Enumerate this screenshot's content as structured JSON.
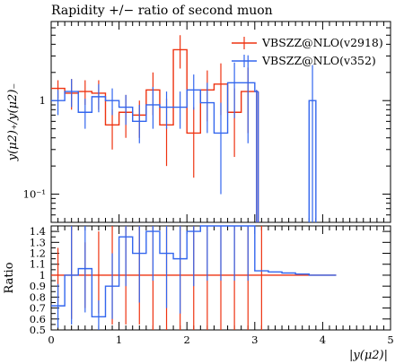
{
  "chart_data": [
    {
      "type": "line",
      "title": "Rapidity +/− ratio of second muon",
      "ylabel": "y(μ2)₊/y(μ2)₋",
      "xlabel": "",
      "xlim": [
        0,
        5
      ],
      "ylim": [
        0.05,
        7
      ],
      "yscale": "log",
      "yticks": [
        {
          "value": 0.1,
          "label": "10⁻¹"
        },
        {
          "value": 1,
          "label": "1"
        }
      ],
      "legend_position": "top-right",
      "bin_edges": [
        0,
        0.25,
        0.5,
        0.75,
        1.0,
        1.25,
        1.5,
        1.75,
        2.0,
        2.25,
        2.5,
        2.75,
        3.0
      ],
      "series": [
        {
          "name": "VBSZZ@NLO(v2918)",
          "color": "#ee3311",
          "values": [
            1.35,
            1.2,
            1.25,
            1.2,
            0.55,
            0.75,
            0.7,
            1.3,
            0.55,
            3.5,
            0.45,
            1.3,
            1.5,
            0.75,
            1.25,
            1.25
          ],
          "edges": [
            0,
            0.2,
            0.4,
            0.6,
            0.8,
            1.0,
            1.2,
            1.4,
            1.6,
            1.8,
            2.0,
            2.2,
            2.4,
            2.6,
            2.8,
            3.0,
            3.05
          ],
          "err_low": [
            0.3,
            0.4,
            0.35,
            0.4,
            0.25,
            0.35,
            0.3,
            0.6,
            0.35,
            1.3,
            0.3,
            0.7,
            0.8,
            0.5,
            0.8,
            1.2
          ],
          "err_high": [
            0.3,
            0.5,
            0.4,
            0.45,
            0.25,
            0.4,
            0.3,
            0.7,
            0.5,
            1.5,
            0.4,
            0.8,
            1.0,
            0.6,
            1.0,
            0.05
          ]
        },
        {
          "name": "VBSZZ@NLO(v352)",
          "color": "#3366ee",
          "values": [
            1.0,
            1.25,
            0.75,
            1.1,
            1.0,
            0.85,
            0.6,
            0.9,
            0.85,
            0.85,
            1.3,
            0.95,
            0.45,
            1.55,
            1.55,
            1.25
          ],
          "edges": [
            0,
            0.2,
            0.4,
            0.6,
            0.8,
            1.0,
            1.2,
            1.4,
            1.6,
            1.8,
            2.0,
            2.2,
            2.4,
            2.6,
            2.8,
            3.0,
            3.05
          ],
          "err_low": [
            0.3,
            0.4,
            0.25,
            0.35,
            0.3,
            0.3,
            0.25,
            0.4,
            0.35,
            0.35,
            0.5,
            0.5,
            0.35,
            0.9,
            1.2,
            1.2
          ],
          "err_high": [
            0.3,
            0.45,
            0.3,
            0.4,
            0.35,
            0.3,
            0.3,
            0.5,
            0.4,
            0.4,
            0.6,
            0.6,
            0.5,
            1.0,
            1.5,
            0.05
          ],
          "isolated": {
            "x0": 3.8,
            "x1": 3.9,
            "y": 1.0,
            "yhigh": 2.4
          }
        }
      ]
    },
    {
      "type": "line",
      "title": "",
      "ylabel": "Ratio",
      "xlabel": "|y(μ2)|",
      "xlim": [
        0,
        5
      ],
      "ylim": [
        0.5,
        1.45
      ],
      "xticks": [
        0,
        1,
        2,
        3,
        4,
        5
      ],
      "yticks": [
        0.5,
        0.6,
        0.7,
        0.8,
        0.9,
        1.0,
        1.1,
        1.2,
        1.3,
        1.4
      ],
      "series": [
        {
          "name": "VBSZZ@NLO(v2918)",
          "color": "#ee3311",
          "values": [
            1.0,
            1.0,
            1.0,
            1.0,
            1.0,
            1.0,
            1.0,
            1.0,
            1.0,
            1.0,
            1.0,
            1.0,
            1.0,
            1.0,
            1.0,
            1.0,
            1.0,
            1.0,
            1.0,
            1.0,
            1.0
          ],
          "edges": [
            0,
            0.2,
            0.4,
            0.6,
            0.8,
            1.0,
            1.2,
            1.4,
            1.6,
            1.8,
            2.0,
            2.2,
            2.4,
            2.6,
            2.8,
            3.0,
            3.2,
            3.4,
            3.6,
            3.8,
            4.0,
            4.2
          ],
          "err_low": [
            0.25,
            0.4,
            0.3,
            0.35,
            0.45,
            0.45,
            0.45,
            0.5,
            0.5,
            0.5,
            0.5,
            0.5,
            0.5,
            0.5,
            0.5,
            0.5,
            0,
            0,
            0,
            0,
            0
          ],
          "err_high": [
            0.25,
            0.45,
            0.3,
            0.4,
            0.45,
            0.45,
            0.45,
            0.45,
            0.45,
            0.45,
            0.45,
            0.45,
            0.45,
            0.45,
            0.45,
            0.45,
            0,
            0,
            0,
            0,
            0
          ]
        },
        {
          "name": "VBSZZ@NLO(v352)",
          "color": "#3366ee",
          "values": [
            0.72,
            1.0,
            1.06,
            0.62,
            0.9,
            1.35,
            1.2,
            1.4,
            1.2,
            1.15,
            1.4,
            1.45,
            1.45,
            1.45,
            1.45,
            1.04,
            1.03,
            1.02,
            1.01,
            1.0,
            1.0
          ],
          "edges": [
            0,
            0.2,
            0.4,
            0.6,
            0.8,
            1.0,
            1.2,
            1.4,
            1.6,
            1.8,
            2.0,
            2.2,
            2.4,
            2.6,
            2.8,
            3.0,
            3.2,
            3.4,
            3.6,
            3.8,
            4.0,
            4.2
          ],
          "err_low": [
            0.2,
            0.45,
            0.4,
            0.15,
            0.3,
            0.45,
            0.45,
            0.45,
            0.5,
            0.5,
            0.5,
            0.5,
            0.5,
            0.5,
            0.5,
            0.0,
            0,
            0,
            0,
            0,
            0
          ],
          "err_high": [
            0.2,
            0.45,
            0.4,
            0.15,
            0.3,
            0.1,
            0.25,
            0.05,
            0.25,
            0.3,
            0.05,
            0,
            0,
            0,
            0,
            0.0,
            0,
            0,
            0,
            0,
            0
          ]
        }
      ]
    }
  ]
}
